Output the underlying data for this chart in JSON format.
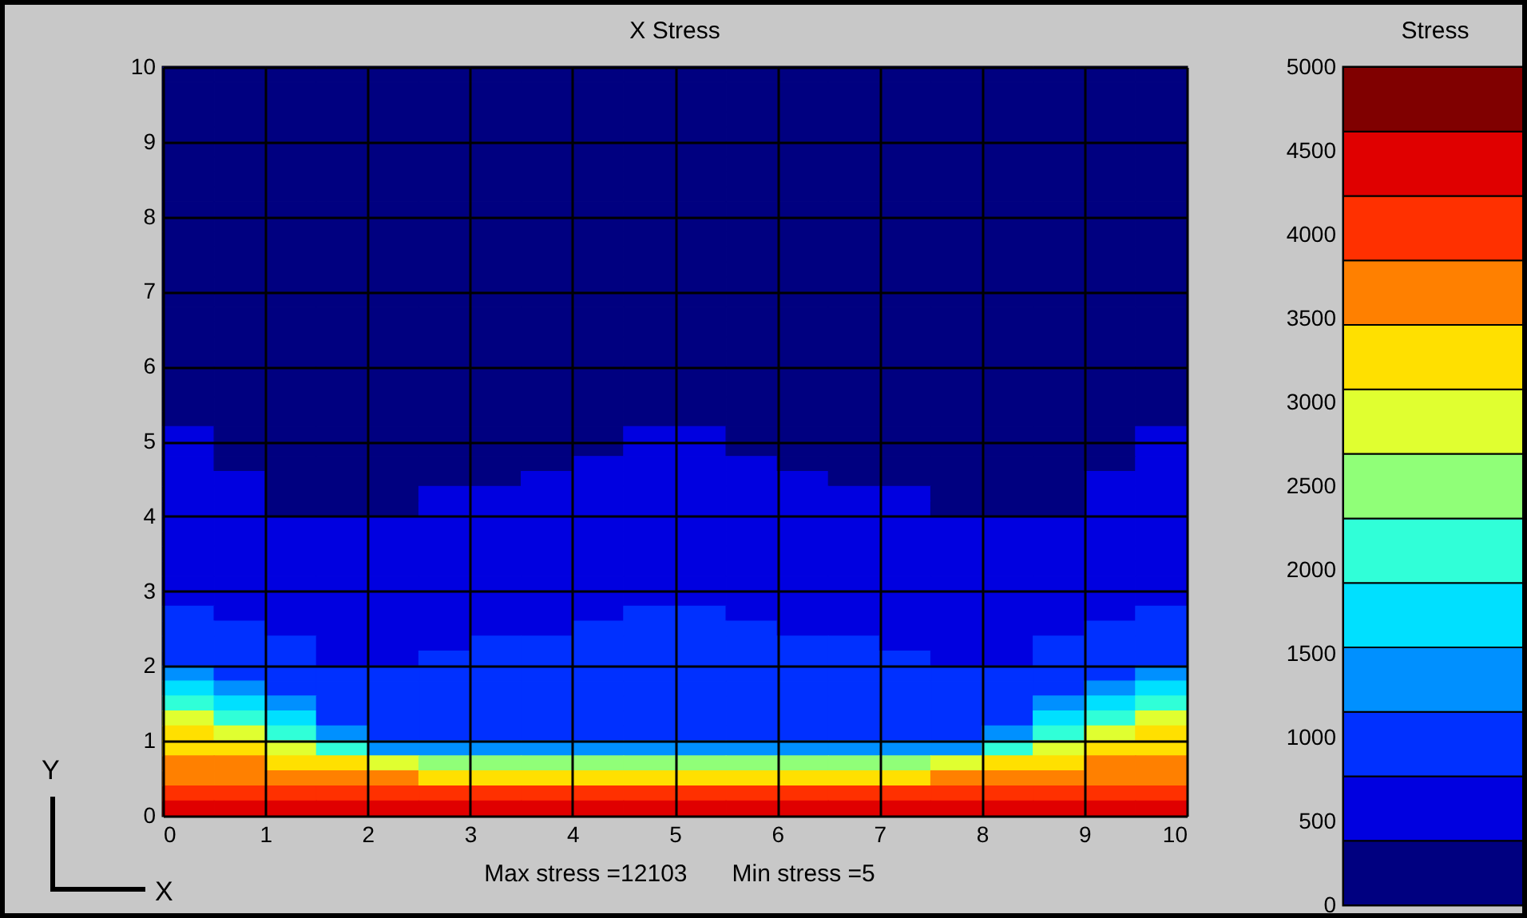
{
  "chart_data": {
    "type": "heatmap",
    "title": "X Stress",
    "xlabel": "X",
    "ylabel": "Y",
    "legend_title": "Stress",
    "annotations": [
      "Max stress =12103",
      "Min stress =5"
    ],
    "x": [
      0.25,
      0.75,
      1.25,
      1.75,
      2.25,
      2.75,
      3.25,
      3.75,
      4.25,
      4.75,
      5.25,
      5.75,
      6.25,
      6.75,
      7.25,
      7.75,
      8.25,
      8.75,
      9.25,
      9.75
    ],
    "y": [
      9.9,
      9.7,
      9.5,
      9.3,
      9.1,
      8.9,
      8.7,
      8.5,
      8.3,
      8.1,
      7.9,
      7.7,
      7.5,
      7.3,
      7.1,
      6.9,
      6.7,
      6.5,
      6.3,
      6.1,
      5.9,
      5.7,
      5.5,
      5.3,
      5.1,
      4.9,
      4.7,
      4.5,
      4.3,
      4.1,
      3.9,
      3.7,
      3.5,
      3.3,
      3.1,
      2.9,
      2.7,
      2.5,
      2.3,
      2.1,
      1.9,
      1.7,
      1.5,
      1.3,
      1.1,
      0.9,
      0.7,
      0.5,
      0.3,
      0.1
    ],
    "xlim": [
      0,
      10
    ],
    "xticks": [
      0,
      1,
      2,
      3,
      4,
      5,
      6,
      7,
      8,
      9,
      10
    ],
    "ylim": [
      0,
      10
    ],
    "yticks": [
      0,
      1,
      2,
      3,
      4,
      5,
      6,
      7,
      8,
      9,
      10
    ],
    "grid": true,
    "clim": [
      0,
      5000
    ],
    "cticks": [
      0,
      500,
      1000,
      1500,
      2000,
      2500,
      3000,
      3500,
      4000,
      4500,
      5000
    ],
    "colors": [
      "#000080",
      "#0000e0",
      "#0030ff",
      "#0090ff",
      "#00e0ff",
      "#30ffd8",
      "#90ff78",
      "#e0ff30",
      "#ffe000",
      "#ff8000",
      "#ff3000",
      "#e00000",
      "#800000"
    ],
    "cells": [
      [
        200,
        200,
        200,
        200,
        200,
        200,
        200,
        200,
        200,
        200,
        200,
        200,
        200,
        200,
        200,
        200,
        200,
        200,
        200,
        200
      ],
      [
        200,
        200,
        200,
        200,
        200,
        200,
        200,
        200,
        200,
        200,
        200,
        200,
        200,
        200,
        200,
        200,
        200,
        200,
        200,
        200
      ],
      [
        200,
        200,
        200,
        200,
        200,
        200,
        200,
        200,
        200,
        200,
        200,
        200,
        200,
        200,
        200,
        200,
        200,
        200,
        200,
        200
      ],
      [
        200,
        200,
        200,
        200,
        200,
        200,
        200,
        200,
        200,
        200,
        200,
        200,
        200,
        200,
        200,
        200,
        200,
        200,
        200,
        200
      ],
      [
        200,
        200,
        200,
        200,
        200,
        200,
        200,
        200,
        200,
        200,
        200,
        200,
        200,
        200,
        200,
        200,
        200,
        200,
        200,
        200
      ],
      [
        200,
        200,
        200,
        200,
        200,
        200,
        200,
        200,
        200,
        200,
        200,
        200,
        200,
        200,
        200,
        200,
        200,
        200,
        200,
        200
      ],
      [
        200,
        200,
        200,
        200,
        200,
        200,
        200,
        200,
        200,
        200,
        200,
        200,
        200,
        200,
        200,
        200,
        200,
        200,
        200,
        200
      ],
      [
        200,
        200,
        200,
        200,
        200,
        200,
        200,
        200,
        200,
        200,
        200,
        200,
        200,
        200,
        200,
        200,
        200,
        200,
        200,
        200
      ],
      [
        200,
        200,
        200,
        200,
        200,
        200,
        200,
        200,
        200,
        200,
        200,
        200,
        200,
        200,
        200,
        200,
        200,
        200,
        200,
        200
      ],
      [
        200,
        200,
        200,
        200,
        200,
        200,
        200,
        200,
        200,
        200,
        200,
        200,
        200,
        200,
        200,
        200,
        200,
        200,
        200,
        200
      ],
      [
        200,
        200,
        200,
        200,
        200,
        200,
        200,
        200,
        200,
        200,
        200,
        200,
        200,
        200,
        200,
        200,
        200,
        200,
        200,
        200
      ],
      [
        200,
        200,
        200,
        200,
        200,
        200,
        200,
        200,
        200,
        200,
        200,
        200,
        200,
        200,
        200,
        200,
        200,
        200,
        200,
        200
      ],
      [
        200,
        200,
        200,
        200,
        200,
        200,
        200,
        200,
        200,
        200,
        200,
        200,
        200,
        200,
        200,
        200,
        200,
        200,
        200,
        200
      ],
      [
        200,
        200,
        200,
        200,
        200,
        200,
        200,
        200,
        200,
        200,
        200,
        200,
        200,
        200,
        200,
        200,
        200,
        200,
        200,
        200
      ],
      [
        200,
        200,
        200,
        200,
        200,
        200,
        200,
        200,
        200,
        200,
        200,
        200,
        200,
        200,
        200,
        200,
        200,
        200,
        200,
        200
      ],
      [
        200,
        200,
        200,
        200,
        200,
        200,
        200,
        200,
        200,
        200,
        200,
        200,
        200,
        200,
        200,
        200,
        200,
        200,
        200,
        200
      ],
      [
        200,
        200,
        200,
        200,
        200,
        200,
        200,
        200,
        200,
        200,
        200,
        200,
        200,
        200,
        200,
        200,
        200,
        200,
        200,
        200
      ],
      [
        200,
        200,
        200,
        200,
        200,
        200,
        200,
        200,
        200,
        200,
        200,
        200,
        200,
        200,
        200,
        200,
        200,
        200,
        200,
        200
      ],
      [
        200,
        200,
        200,
        200,
        200,
        200,
        200,
        200,
        200,
        200,
        200,
        200,
        200,
        200,
        200,
        200,
        200,
        200,
        200,
        200
      ],
      [
        200,
        200,
        200,
        200,
        200,
        200,
        200,
        200,
        200,
        200,
        200,
        200,
        200,
        200,
        200,
        200,
        200,
        200,
        200,
        200
      ],
      [
        200,
        200,
        200,
        200,
        200,
        200,
        200,
        200,
        200,
        200,
        200,
        200,
        200,
        200,
        200,
        200,
        200,
        200,
        200,
        200
      ],
      [
        200,
        200,
        200,
        200,
        200,
        200,
        200,
        200,
        200,
        200,
        200,
        200,
        200,
        200,
        200,
        200,
        200,
        200,
        200,
        200
      ],
      [
        200,
        200,
        200,
        200,
        200,
        200,
        200,
        200,
        200,
        200,
        200,
        200,
        200,
        200,
        200,
        200,
        200,
        200,
        200,
        200
      ],
      [
        200,
        200,
        200,
        200,
        200,
        200,
        200,
        200,
        200,
        200,
        200,
        200,
        200,
        200,
        200,
        200,
        200,
        200,
        200,
        200
      ],
      [
        600,
        200,
        200,
        200,
        200,
        200,
        200,
        200,
        200,
        600,
        600,
        200,
        200,
        200,
        200,
        200,
        200,
        200,
        200,
        600
      ],
      [
        600,
        200,
        200,
        200,
        200,
        200,
        200,
        200,
        200,
        600,
        600,
        200,
        200,
        200,
        200,
        200,
        200,
        200,
        200,
        600
      ],
      [
        600,
        200,
        200,
        200,
        200,
        200,
        200,
        200,
        600,
        600,
        600,
        600,
        200,
        200,
        200,
        200,
        200,
        200,
        200,
        600
      ],
      [
        600,
        600,
        200,
        200,
        200,
        200,
        200,
        600,
        600,
        600,
        600,
        600,
        600,
        200,
        200,
        200,
        200,
        200,
        600,
        600
      ],
      [
        600,
        600,
        200,
        200,
        200,
        600,
        600,
        600,
        600,
        600,
        600,
        600,
        600,
        600,
        600,
        200,
        200,
        200,
        600,
        600
      ],
      [
        600,
        600,
        200,
        200,
        200,
        600,
        600,
        600,
        600,
        600,
        600,
        600,
        600,
        600,
        600,
        200,
        200,
        200,
        600,
        600
      ],
      [
        600,
        600,
        600,
        600,
        600,
        600,
        600,
        600,
        600,
        600,
        600,
        600,
        600,
        600,
        600,
        600,
        600,
        600,
        600,
        600
      ],
      [
        600,
        600,
        600,
        600,
        600,
        600,
        600,
        600,
        600,
        600,
        600,
        600,
        600,
        600,
        600,
        600,
        600,
        600,
        600,
        600
      ],
      [
        600,
        600,
        600,
        600,
        600,
        600,
        600,
        600,
        600,
        600,
        600,
        600,
        600,
        600,
        600,
        600,
        600,
        600,
        600,
        600
      ],
      [
        600,
        600,
        600,
        600,
        600,
        600,
        600,
        600,
        600,
        600,
        600,
        600,
        600,
        600,
        600,
        600,
        600,
        600,
        600,
        600
      ],
      [
        600,
        600,
        600,
        600,
        600,
        600,
        600,
        600,
        600,
        600,
        600,
        600,
        600,
        600,
        600,
        600,
        600,
        600,
        600,
        600
      ],
      [
        600,
        600,
        600,
        600,
        600,
        600,
        600,
        600,
        600,
        600,
        600,
        600,
        600,
        600,
        600,
        600,
        600,
        600,
        600,
        600
      ],
      [
        950,
        600,
        600,
        600,
        600,
        600,
        600,
        600,
        600,
        950,
        950,
        600,
        600,
        600,
        600,
        600,
        600,
        600,
        600,
        950
      ],
      [
        950,
        950,
        600,
        600,
        600,
        600,
        600,
        600,
        950,
        950,
        950,
        950,
        600,
        600,
        600,
        600,
        600,
        600,
        950,
        950
      ],
      [
        950,
        950,
        950,
        600,
        600,
        600,
        950,
        950,
        950,
        950,
        950,
        950,
        950,
        950,
        600,
        600,
        600,
        950,
        950,
        950
      ],
      [
        950,
        950,
        950,
        600,
        600,
        950,
        950,
        950,
        950,
        950,
        950,
        950,
        950,
        950,
        950,
        600,
        600,
        950,
        950,
        950
      ],
      [
        1350,
        950,
        950,
        950,
        950,
        950,
        950,
        950,
        950,
        950,
        950,
        950,
        950,
        950,
        950,
        950,
        950,
        950,
        950,
        1350
      ],
      [
        1750,
        1350,
        950,
        950,
        950,
        950,
        950,
        950,
        950,
        950,
        950,
        950,
        950,
        950,
        950,
        950,
        950,
        950,
        1350,
        1750
      ],
      [
        2100,
        1750,
        1350,
        950,
        950,
        950,
        950,
        950,
        950,
        950,
        950,
        950,
        950,
        950,
        950,
        950,
        950,
        1350,
        1750,
        2100
      ],
      [
        2900,
        2100,
        1750,
        950,
        950,
        950,
        950,
        950,
        950,
        950,
        950,
        950,
        950,
        950,
        950,
        950,
        950,
        1750,
        2100,
        2900
      ],
      [
        3250,
        2900,
        2100,
        1350,
        950,
        950,
        950,
        950,
        950,
        950,
        950,
        950,
        950,
        950,
        950,
        950,
        1350,
        2100,
        2900,
        3250
      ],
      [
        3250,
        3250,
        2900,
        2100,
        1350,
        1350,
        1350,
        1350,
        1350,
        1350,
        1350,
        1350,
        1350,
        1350,
        1350,
        1350,
        2100,
        2900,
        3250,
        3250
      ],
      [
        3650,
        3650,
        3250,
        3250,
        2900,
        2500,
        2500,
        2500,
        2500,
        2500,
        2500,
        2500,
        2500,
        2500,
        2500,
        2900,
        3250,
        3250,
        3650,
        3650
      ],
      [
        3650,
        3650,
        3650,
        3650,
        3650,
        3250,
        3250,
        3250,
        3250,
        3250,
        3250,
        3250,
        3250,
        3250,
        3250,
        3650,
        3650,
        3650,
        3650,
        3650
      ],
      [
        4050,
        4050,
        4050,
        4050,
        4050,
        4050,
        4050,
        4050,
        4050,
        4050,
        4050,
        4050,
        4050,
        4050,
        4050,
        4050,
        4050,
        4050,
        4050,
        4050
      ],
      [
        4400,
        4400,
        4400,
        4400,
        4400,
        4400,
        4400,
        4400,
        4400,
        4400,
        4400,
        4400,
        4400,
        4400,
        4400,
        4400,
        4400,
        4400,
        4400,
        4400
      ]
    ]
  }
}
